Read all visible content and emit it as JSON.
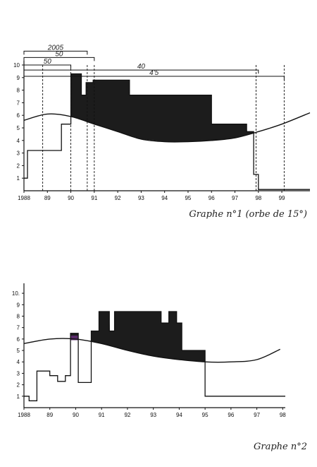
{
  "chart_data": [
    {
      "type": "area",
      "caption": "Graphe n°1 (orbe de 15°)",
      "x_tick_labels": [
        "1988",
        "89",
        "90",
        "91",
        "92",
        "93",
        "94",
        "95",
        "96",
        "97",
        "98",
        "99"
      ],
      "y_tick_labels": [
        "1",
        "2",
        "3",
        "4",
        "5",
        "6",
        "7",
        "8",
        "9",
        "10"
      ],
      "xlim": [
        1988,
        2000.2
      ],
      "ylim": [
        0,
        10
      ],
      "grid": false,
      "step_series": {
        "x": [
          1988,
          1988.15,
          1988.15,
          1989.6,
          1989.6,
          1990,
          1990,
          1990.45,
          1990.45,
          1990.65,
          1990.65,
          1990.95,
          1990.95,
          1992.5,
          1992.5,
          1996,
          1996,
          1997.5,
          1997.5,
          1997.8,
          1997.8,
          1998,
          1998,
          2000.2
        ],
        "y": [
          1,
          1,
          3.2,
          3.2,
          5.3,
          5.3,
          9.3,
          9.3,
          7.6,
          7.6,
          8.6,
          8.6,
          8.8,
          8.8,
          7.6,
          7.6,
          5.3,
          5.3,
          4.7,
          4.7,
          1.3,
          1.3,
          0.1,
          0.1
        ]
      },
      "curve": {
        "x": [
          1988,
          1989,
          1990,
          1991,
          1992,
          1993,
          1994,
          1995,
          1996,
          1997,
          1998,
          1999,
          2000.2
        ],
        "y": [
          5.6,
          6.1,
          5.9,
          5.3,
          4.7,
          4.1,
          3.9,
          3.9,
          4.0,
          4.2,
          4.7,
          5.3,
          6.2
        ]
      },
      "annotations": [
        {
          "label": "2005",
          "x": [
            1988,
            1990.7
          ],
          "level": 11.1
        },
        {
          "label": "50",
          "x": [
            1988,
            1991
          ],
          "level": 10.6
        },
        {
          "label": "50",
          "x": [
            1988,
            1990
          ],
          "level": 10.0
        },
        {
          "label": "40",
          "x": [
            1988,
            1998
          ],
          "level": 9.6
        },
        {
          "label": "4'5",
          "x": [
            1988,
            1999.1
          ],
          "level": 9.1
        }
      ],
      "markers": [
        1988.8,
        1990,
        1990.7,
        1991,
        1997.9,
        1999.1
      ]
    },
    {
      "type": "area",
      "caption": "Graphe n°2",
      "x_tick_labels": [
        "1988",
        "89",
        "90",
        "91",
        "92",
        "93",
        "94",
        "95",
        "96",
        "97",
        "98"
      ],
      "y_tick_labels": [
        "1",
        "2",
        "3",
        "4",
        "5",
        "6",
        "7",
        "8",
        "9",
        "10."
      ],
      "xlim": [
        1988,
        1998.1
      ],
      "ylim": [
        0,
        10.5
      ],
      "grid": false,
      "step_series": {
        "x": [
          1988,
          1988.2,
          1988.2,
          1988.5,
          1988.5,
          1989,
          1989,
          1989.3,
          1989.3,
          1989.6,
          1989.6,
          1989.8,
          1989.8,
          1990.1,
          1990.1,
          1990.6,
          1990.6,
          1990.9,
          1990.9,
          1991.3,
          1991.3,
          1991.5,
          1991.5,
          1993.3,
          1993.3,
          1993.6,
          1993.6,
          1993.9,
          1993.9,
          1994.1,
          1994.1,
          1995,
          1995,
          1997.1,
          1997.1,
          1998.1
        ],
        "y": [
          1,
          1,
          0.6,
          0.6,
          3.2,
          3.2,
          2.8,
          2.8,
          2.3,
          2.3,
          2.8,
          2.8,
          6.5,
          6.5,
          2.2,
          2.2,
          6.7,
          6.7,
          8.4,
          8.4,
          6.7,
          6.7,
          8.4,
          8.4,
          7.4,
          7.4,
          8.4,
          8.4,
          7.4,
          7.4,
          5.0,
          5.0,
          1.0,
          1.0,
          1.0,
          1.0
        ]
      },
      "curve": {
        "x": [
          1988,
          1989,
          1990,
          1991,
          1992,
          1993,
          1994,
          1995,
          1996,
          1997,
          1997.9
        ],
        "y": [
          5.6,
          6.0,
          6.0,
          5.6,
          5.0,
          4.5,
          4.2,
          4.0,
          4.0,
          4.2,
          5.1
        ]
      },
      "highlight": {
        "x": [
          1989.8,
          1990.1
        ],
        "y": [
          5.9,
          6.3
        ],
        "color": "#5a2b6a"
      }
    }
  ]
}
